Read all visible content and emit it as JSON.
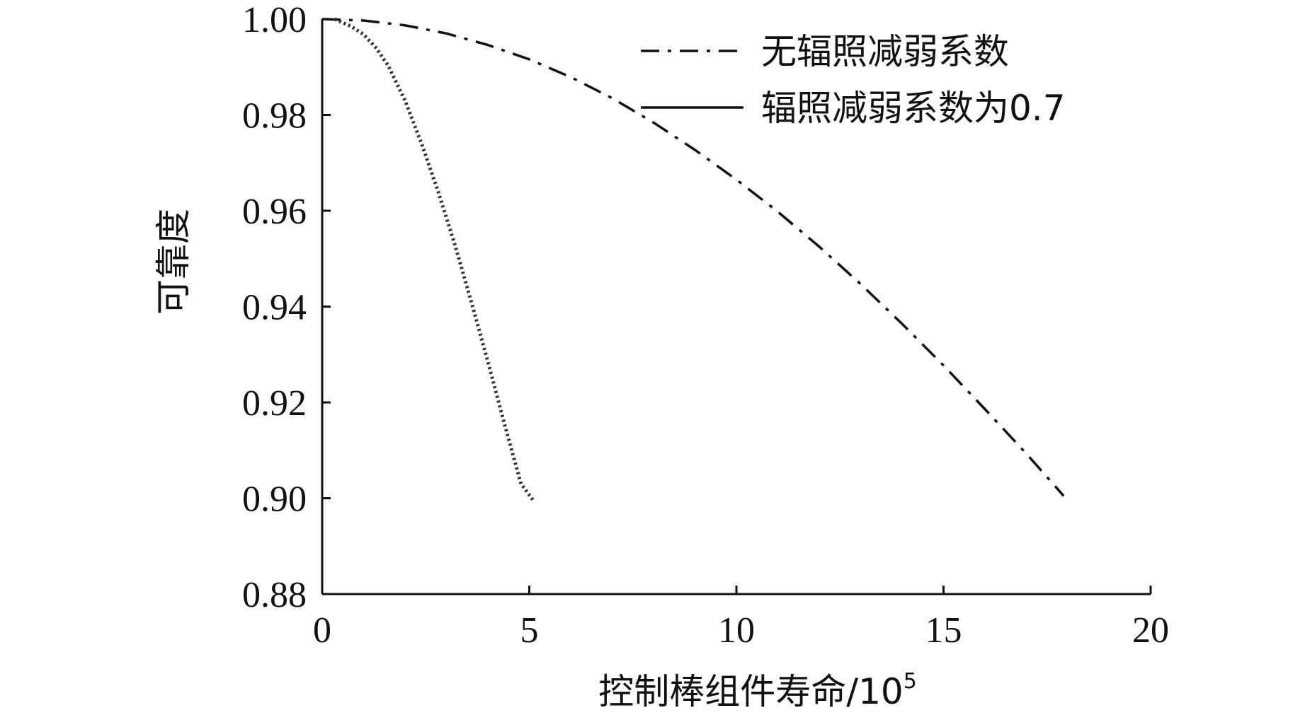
{
  "chart_data": {
    "type": "line",
    "title": "",
    "xlabel": "控制棒组件寿命/10",
    "xlabel_exponent": "5",
    "ylabel": "可靠度",
    "xlim": [
      0,
      20
    ],
    "ylim": [
      0.88,
      1.0
    ],
    "xticks": [
      0,
      5,
      10,
      15,
      20
    ],
    "xtick_labels": [
      "0",
      "5",
      "10",
      "15",
      "20"
    ],
    "yticks": [
      0.88,
      0.9,
      0.92,
      0.94,
      0.96,
      0.98,
      1.0
    ],
    "ytick_labels": [
      "0.88",
      "0.90",
      "0.92",
      "0.94",
      "0.96",
      "0.98",
      "1.00"
    ],
    "grid": false,
    "legend_position": "top-right",
    "legend": [
      {
        "label": "无辐照减弱系数",
        "style": "dashdot"
      },
      {
        "label": "辐照减弱系数为0.7",
        "style": "solid"
      }
    ],
    "series": [
      {
        "name": "无辐照减弱系数",
        "style": "dashdot",
        "color": "#111111",
        "x": [
          0,
          1,
          2,
          3,
          4,
          5,
          6,
          7,
          8,
          9,
          10,
          11,
          12,
          13,
          14,
          15,
          16,
          17,
          17.9
        ],
        "y": [
          1.0,
          0.9997,
          0.9987,
          0.997,
          0.9946,
          0.9916,
          0.9879,
          0.9835,
          0.9784,
          0.9727,
          0.9665,
          0.9598,
          0.9525,
          0.9447,
          0.9364,
          0.9277,
          0.9186,
          0.9093,
          0.9005
        ]
      },
      {
        "name": "",
        "style": "dotted",
        "color": "#333333",
        "x": [
          0.3,
          0.7,
          1.0,
          1.3,
          1.6,
          2.0,
          2.4,
          2.8,
          3.2,
          3.6,
          4.0,
          4.4,
          4.8,
          5.1
        ],
        "y": [
          1.0,
          0.9985,
          0.9968,
          0.994,
          0.9902,
          0.983,
          0.974,
          0.964,
          0.953,
          0.941,
          0.9285,
          0.9155,
          0.903,
          0.8995
        ]
      }
    ]
  }
}
